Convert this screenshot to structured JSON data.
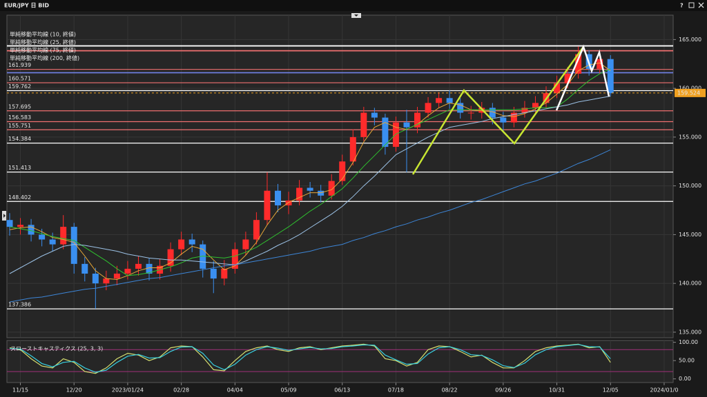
{
  "window": {
    "title": "EUR/JPY 日 BID",
    "help": "?"
  },
  "chart_data": [
    {
      "type": "candlestick",
      "categories": [
        null,
        "11/15",
        null,
        null,
        null,
        null,
        "12/20",
        null,
        null,
        null,
        null,
        "2023/01/24",
        null,
        null,
        null,
        null,
        "02/28",
        null,
        null,
        null,
        null,
        "04/04",
        null,
        null,
        null,
        null,
        "05/09",
        null,
        null,
        null,
        null,
        "06/13",
        null,
        null,
        null,
        null,
        "07/18",
        null,
        null,
        null,
        null,
        "08/22",
        null,
        null,
        null,
        null,
        "09/26",
        null,
        null,
        null,
        null,
        "10/31",
        null,
        null,
        null,
        null,
        "12/05",
        null,
        null,
        null,
        null,
        "2024/01/0"
      ],
      "open": [
        146.5,
        145.8,
        146.0,
        145.0,
        144.5,
        144.0,
        145.8,
        142.0,
        141.0,
        140.0,
        140.5,
        141.0,
        141.5,
        142.0,
        141.0,
        141.8,
        143.5,
        144.5,
        144.0,
        141.5,
        140.5,
        141.5,
        143.5,
        144.5,
        146.5,
        149.5,
        148.0,
        148.5,
        149.8,
        149.5,
        149.0,
        150.5,
        152.5,
        155.0,
        157.5,
        157.0,
        154.0,
        156.5,
        156.0,
        157.5,
        158.5,
        159.0,
        158.5,
        157.5,
        157.5,
        158.0,
        157.0,
        156.5,
        157.5,
        158.0,
        158.5,
        159.5,
        160.5,
        161.5,
        163.5,
        162.0,
        163.0,
        null,
        null,
        null,
        null,
        null
      ],
      "high": [
        147.2,
        146.7,
        146.6,
        145.6,
        145.2,
        147.0,
        146.2,
        142.7,
        141.6,
        141.3,
        141.8,
        142.3,
        142.8,
        142.6,
        142.5,
        144.2,
        145.3,
        145.1,
        144.4,
        142.3,
        142.4,
        144.2,
        145.3,
        147.3,
        151.4,
        150.2,
        149.4,
        150.6,
        150.4,
        150.1,
        151.2,
        153.2,
        155.8,
        158.1,
        158.0,
        157.4,
        157.1,
        157.8,
        158.1,
        159.1,
        159.6,
        159.8,
        159.0,
        158.2,
        158.6,
        158.5,
        157.6,
        158.1,
        158.7,
        159.2,
        160.2,
        161.3,
        162.2,
        164.3,
        163.9,
        163.7,
        163.4,
        null,
        null,
        null,
        null,
        null
      ],
      "low": [
        144.9,
        145.0,
        144.3,
        143.8,
        143.3,
        143.5,
        141.0,
        140.2,
        137.4,
        139.3,
        139.8,
        140.4,
        140.8,
        140.3,
        140.4,
        141.2,
        142.9,
        143.2,
        140.6,
        139.0,
        139.8,
        141.0,
        142.9,
        144.0,
        146.0,
        147.3,
        147.1,
        148.0,
        148.8,
        148.3,
        148.6,
        150.1,
        152.1,
        154.6,
        156.2,
        153.2,
        153.5,
        151.4,
        155.4,
        157.0,
        158.0,
        157.9,
        156.9,
        156.8,
        156.9,
        156.3,
        155.5,
        156.0,
        157.0,
        157.5,
        158.0,
        159.0,
        160.0,
        161.0,
        161.3,
        161.5,
        159.2,
        null,
        null,
        null,
        null,
        null
      ],
      "close": [
        145.8,
        146.0,
        145.0,
        144.5,
        144.0,
        145.8,
        142.0,
        141.0,
        140.0,
        140.5,
        141.0,
        141.5,
        142.0,
        141.0,
        141.8,
        143.5,
        144.5,
        144.0,
        141.5,
        140.5,
        141.5,
        143.5,
        144.5,
        146.5,
        149.5,
        148.0,
        148.5,
        149.8,
        149.5,
        149.0,
        150.5,
        152.5,
        155.0,
        157.5,
        157.0,
        154.0,
        156.5,
        156.0,
        157.5,
        158.5,
        159.0,
        158.5,
        157.5,
        157.5,
        158.0,
        157.0,
        156.5,
        157.5,
        158.0,
        158.5,
        159.5,
        160.5,
        161.5,
        163.5,
        162.0,
        163.0,
        159.5,
        null,
        null,
        null,
        null,
        null
      ],
      "up_color": "#ff2b2b",
      "down_color": "#3a8ff0",
      "series": [
        {
          "name": "単純移動平均線 (10, 終値)",
          "color": "#e8a838",
          "values": [
            145.5,
            145.7,
            145.8,
            145.3,
            144.7,
            144.5,
            144.2,
            142.8,
            141.3,
            140.5,
            140.4,
            140.8,
            141.3,
            141.6,
            141.6,
            142.1,
            143.0,
            143.8,
            143.5,
            142.4,
            141.4,
            141.8,
            142.9,
            144.2,
            146.0,
            147.5,
            148.3,
            148.8,
            149.3,
            149.3,
            149.6,
            150.7,
            152.4,
            154.5,
            156.0,
            156.5,
            156.0,
            155.8,
            156.3,
            157.2,
            158.0,
            158.5,
            158.3,
            157.8,
            157.7,
            157.6,
            157.2,
            157.1,
            157.4,
            157.9,
            158.5,
            159.4,
            160.4,
            161.8,
            162.4,
            162.6,
            161.8,
            null,
            null,
            null,
            null,
            null
          ]
        },
        {
          "name": "単純移動平均線 (25, 終値)",
          "color": "#2fc22f",
          "values": [
            145.8,
            145.6,
            145.4,
            145.1,
            144.8,
            144.6,
            144.4,
            143.7,
            143.0,
            142.3,
            141.5,
            140.8,
            140.9,
            141.1,
            141.4,
            141.7,
            142.1,
            142.6,
            142.8,
            142.7,
            142.6,
            142.8,
            143.2,
            143.7,
            144.4,
            145.1,
            145.8,
            146.6,
            147.4,
            148.1,
            148.9,
            149.7,
            150.8,
            152.0,
            153.1,
            154.2,
            155.3,
            155.8,
            156.3,
            156.8,
            157.3,
            157.8,
            157.8,
            157.8,
            157.8,
            157.8,
            157.8,
            157.8,
            157.9,
            158.0,
            158.0,
            158.1,
            158.9,
            159.9,
            160.8,
            161.5,
            162.0,
            null,
            null,
            null,
            null,
            null
          ]
        },
        {
          "name": "単純移動平均線 (75, 終値)",
          "color": "#9cc2e6",
          "values": [
            141.0,
            141.6,
            142.2,
            142.8,
            143.3,
            143.8,
            144.0,
            143.9,
            143.7,
            143.5,
            143.3,
            143.0,
            142.8,
            142.6,
            142.5,
            142.4,
            142.4,
            142.3,
            142.2,
            142.1,
            142.0,
            141.9,
            142.3,
            142.8,
            143.3,
            143.9,
            144.4,
            145.0,
            145.7,
            146.4,
            147.1,
            147.9,
            148.9,
            150.0,
            151.0,
            152.1,
            153.2,
            153.8,
            154.4,
            155.0,
            155.5,
            156.0,
            156.2,
            156.4,
            156.6,
            156.9,
            157.1,
            157.3,
            157.5,
            157.7,
            157.9,
            158.1,
            158.3,
            158.6,
            158.8,
            159.0,
            159.2,
            null,
            null,
            null,
            null,
            null
          ]
        },
        {
          "name": "単純移動平均線 (200, 終値)",
          "color": "#3d86d8",
          "values": [
            138.1,
            138.3,
            138.5,
            138.6,
            138.8,
            139.0,
            139.2,
            139.4,
            139.5,
            139.7,
            139.9,
            140.1,
            140.3,
            140.5,
            140.6,
            140.8,
            141.0,
            141.2,
            141.4,
            141.6,
            141.8,
            141.9,
            142.1,
            142.3,
            142.5,
            142.7,
            142.9,
            143.1,
            143.3,
            143.6,
            143.8,
            144.0,
            144.4,
            144.7,
            145.1,
            145.4,
            145.8,
            146.1,
            146.5,
            146.8,
            147.2,
            147.5,
            147.9,
            148.3,
            148.6,
            149.0,
            149.4,
            149.8,
            150.2,
            150.5,
            150.9,
            151.3,
            151.8,
            152.3,
            152.7,
            153.2,
            153.7,
            null,
            null,
            null,
            null,
            null
          ]
        }
      ],
      "levels": [
        {
          "value": 161.939,
          "color": "#f07070"
        },
        {
          "value": 160.571,
          "color": "#f07070"
        },
        {
          "value": 159.762,
          "color": "#ffffff"
        },
        {
          "value": 157.695,
          "color": "#f07070"
        },
        {
          "value": 156.583,
          "color": "#f07070"
        },
        {
          "value": 155.751,
          "color": "#f07070"
        },
        {
          "value": 154.384,
          "color": "#ffffff"
        },
        {
          "value": 151.413,
          "color": "#ffffff"
        },
        {
          "value": 148.402,
          "color": "#ffffff"
        },
        {
          "value": 137.386,
          "color": "#ffffff"
        }
      ],
      "lines": [
        {
          "value": 164.35,
          "color": "#ffffff"
        },
        {
          "value": 163.85,
          "color": "#f07070"
        },
        {
          "value": 161.6,
          "color": "#6f7fe0"
        }
      ],
      "current_price": 159.524,
      "current_color": "#f0a020",
      "ylim": [
        134.5,
        167.5
      ],
      "yticks": [
        {
          "value": 135,
          "label": "135.000"
        },
        {
          "value": 140,
          "label": "140.000"
        },
        {
          "value": 145,
          "label": "145.000"
        },
        {
          "value": 150,
          "label": "150.000"
        },
        {
          "value": 155,
          "label": "155.000"
        },
        {
          "value": 160,
          "label": "160.000"
        },
        {
          "value": 165,
          "label": "165.000"
        }
      ],
      "grid": true
    },
    {
      "type": "line",
      "title": "スローストキャスティクス (25, 3, 3)",
      "series": [
        {
          "color": "#d6e070",
          "values": [
            85,
            80,
            55,
            35,
            30,
            55,
            45,
            20,
            15,
            30,
            55,
            70,
            65,
            50,
            60,
            85,
            90,
            88,
            60,
            25,
            22,
            50,
            75,
            85,
            90,
            80,
            75,
            85,
            88,
            80,
            85,
            90,
            92,
            95,
            90,
            55,
            50,
            35,
            45,
            80,
            90,
            88,
            75,
            60,
            65,
            45,
            30,
            30,
            50,
            75,
            85,
            90,
            92,
            95,
            85,
            88,
            45
          ]
        },
        {
          "color": "#38d0e0",
          "values": [
            83,
            82,
            63,
            42,
            33,
            45,
            48,
            30,
            18,
            24,
            45,
            62,
            67,
            57,
            58,
            75,
            87,
            88,
            70,
            38,
            25,
            40,
            65,
            80,
            88,
            84,
            78,
            82,
            86,
            82,
            83,
            88,
            90,
            93,
            92,
            65,
            52,
            40,
            42,
            68,
            85,
            88,
            80,
            66,
            64,
            52,
            36,
            31,
            43,
            66,
            80,
            88,
            91,
            94,
            88,
            87,
            55
          ]
        }
      ],
      "guides": [
        80,
        20
      ],
      "guide_color": "#a0307a",
      "ylim": [
        -10,
        105
      ],
      "yticks": [
        {
          "value": 0,
          "label": "0.00"
        },
        {
          "value": 50,
          "label": "50.00"
        },
        {
          "value": 100,
          "label": "100.00"
        }
      ]
    }
  ]
}
